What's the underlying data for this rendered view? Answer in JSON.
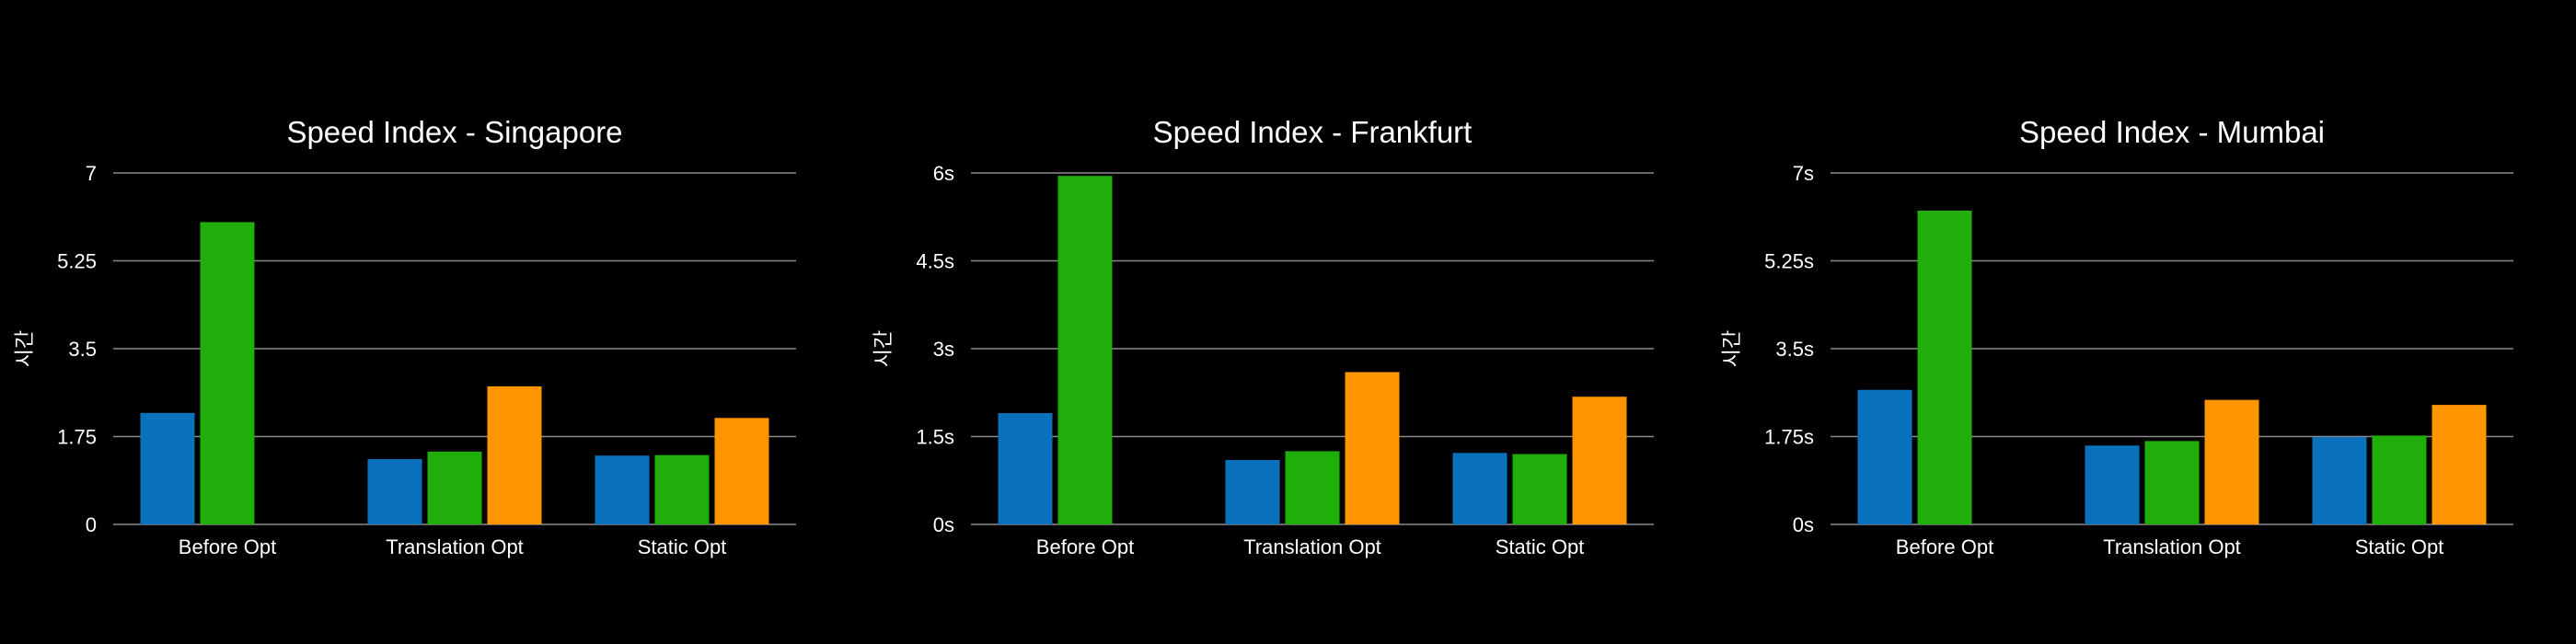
{
  "chart_data": [
    {
      "type": "bar",
      "title": "Speed Index - Singapore",
      "ylabel": "시간",
      "xlabel": "",
      "ylim": [
        0,
        7
      ],
      "yticks": [
        "0",
        "1.75",
        "3.5",
        "5.25",
        "7"
      ],
      "categories": [
        "Before Opt",
        "Translation Opt",
        "Static Opt"
      ],
      "series": [
        {
          "values": [
            2.22,
            1.3,
            1.37
          ]
        },
        {
          "values": [
            6.02,
            1.45,
            1.38
          ]
        },
        {
          "values": [
            null,
            2.75,
            2.12
          ]
        }
      ]
    },
    {
      "type": "bar",
      "title": "Speed Index - Frankfurt",
      "ylabel": "시간",
      "xlabel": "",
      "ylim": [
        0,
        6
      ],
      "yticks": [
        "0s",
        "1.5s",
        "3s",
        "4.5s",
        "6s"
      ],
      "categories": [
        "Before Opt",
        "Translation Opt",
        "Static Opt"
      ],
      "series": [
        {
          "values": [
            1.9,
            1.1,
            1.22
          ]
        },
        {
          "values": [
            5.95,
            1.25,
            1.2
          ]
        },
        {
          "values": [
            null,
            2.6,
            2.18
          ]
        }
      ]
    },
    {
      "type": "bar",
      "title": "Speed Index - Mumbai",
      "ylabel": "시간",
      "xlabel": "",
      "ylim": [
        0,
        7
      ],
      "yticks": [
        "0s",
        "1.75s",
        "3.5s",
        "5.25s",
        "7s"
      ],
      "categories": [
        "Before Opt",
        "Translation Opt",
        "Static Opt"
      ],
      "series": [
        {
          "values": [
            2.68,
            1.57,
            1.74
          ]
        },
        {
          "values": [
            6.25,
            1.66,
            1.77
          ]
        },
        {
          "values": [
            null,
            2.48,
            2.38
          ]
        }
      ]
    }
  ],
  "colors": {
    "background": "#000000",
    "series": [
      "#0a72bc",
      "#1fae0a",
      "#ff9500"
    ],
    "gridline": "#8a8a8a",
    "text": "#ffffff"
  }
}
